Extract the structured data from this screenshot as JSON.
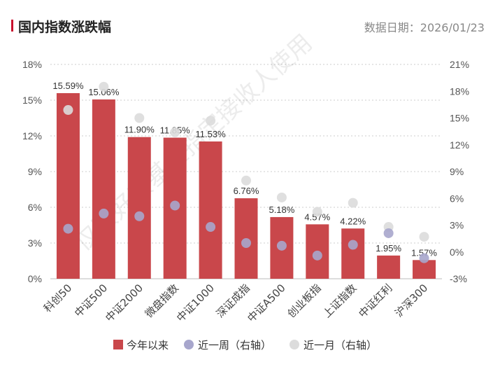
{
  "header": {
    "title": "国内指数涨跌幅",
    "date": "数据日期：2026/01/23"
  },
  "watermark": "仅限好买基金指定接收人使用",
  "colors": {
    "bar": "#c9474b",
    "week": "#a7a6cc",
    "month": "#dcdcdc",
    "accent": "#c8102e"
  },
  "chart_data": {
    "type": "bar",
    "categories": [
      "科创50",
      "中证500",
      "中证2000",
      "微盘指数",
      "中证1000",
      "深证成指",
      "中证A500",
      "创业板指",
      "上证指数",
      "中证红利",
      "沪深300"
    ],
    "series": [
      {
        "name": "今年以来",
        "type": "bar",
        "axis": "left",
        "values": [
          15.59,
          15.06,
          11.9,
          11.85,
          11.53,
          6.76,
          5.18,
          4.57,
          4.22,
          1.95,
          1.57
        ]
      },
      {
        "name": "近一周（右轴）",
        "type": "scatter",
        "axis": "right",
        "values": [
          2.6,
          4.3,
          4.0,
          5.2,
          2.8,
          1.0,
          0.7,
          -0.4,
          0.8,
          2.1,
          -0.7
        ]
      },
      {
        "name": "近一月（右轴）",
        "type": "scatter",
        "axis": "right",
        "values": [
          15.9,
          18.5,
          15.0,
          13.4,
          14.7,
          8.0,
          6.1,
          4.5,
          5.5,
          2.8,
          1.7
        ]
      }
    ],
    "data_labels": [
      "15.59%",
      "15.06%",
      "11.90%",
      "11.85%",
      "11.53%",
      "6.76%",
      "5.18%",
      "4.57%",
      "4.22%",
      "1.95%",
      "1.57%"
    ],
    "left_axis": {
      "ylim": [
        0,
        18
      ],
      "ticks": [
        "0%",
        "3%",
        "6%",
        "9%",
        "12%",
        "15%",
        "18%"
      ]
    },
    "right_axis": {
      "ylim": [
        -3,
        21
      ],
      "ticks": [
        "-3%",
        "0%",
        "3%",
        "6%",
        "9%",
        "12%",
        "15%",
        "18%",
        "21%"
      ]
    },
    "grid": true,
    "legend": "bottom"
  }
}
